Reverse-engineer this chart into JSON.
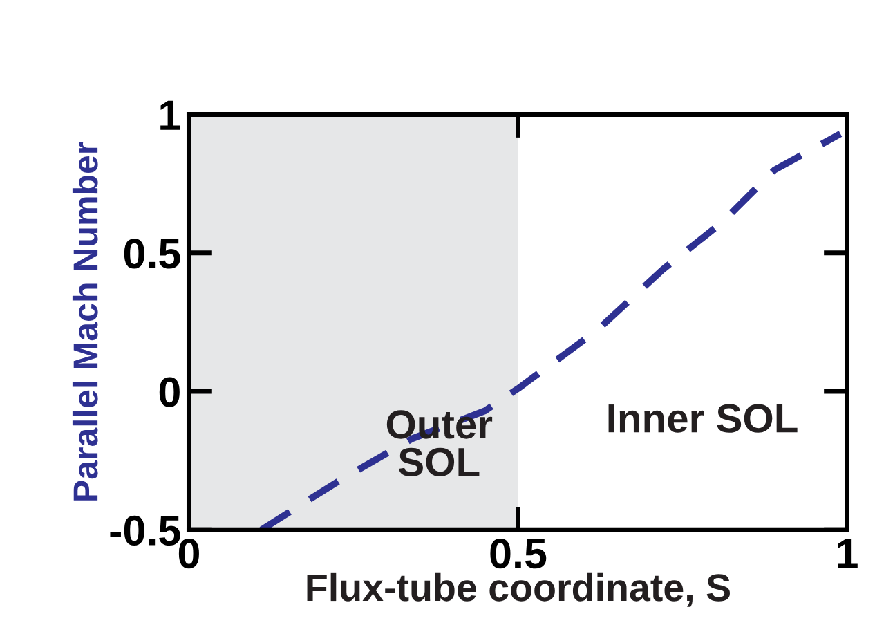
{
  "chart_data": {
    "type": "line",
    "xlabel": "Flux-tube coordinate, S",
    "ylabel": "Parallel Mach Number",
    "series": [
      {
        "color": "#2e3192",
        "line_style": "dashed",
        "x": [
          0.11,
          0.23,
          0.34,
          0.45,
          0.5,
          0.62,
          0.72,
          0.81,
          0.89,
          0.99
        ],
        "values": [
          -0.5,
          -0.32,
          -0.17,
          -0.07,
          0.01,
          0.22,
          0.44,
          0.61,
          0.8,
          0.93
        ]
      }
    ],
    "xlim": [
      0,
      1
    ],
    "ylim": [
      -0.5,
      1
    ],
    "xticks": [
      0,
      0.5,
      1
    ],
    "yticks": [
      -0.5,
      0,
      0.5,
      1
    ],
    "grid": false,
    "legend": false,
    "bands": [
      {
        "axis": "x",
        "from": 0,
        "to": 0.5,
        "color": "#e6e7e8"
      }
    ],
    "annotations": [
      "Outer\nSOL",
      "Inner SOL"
    ]
  }
}
